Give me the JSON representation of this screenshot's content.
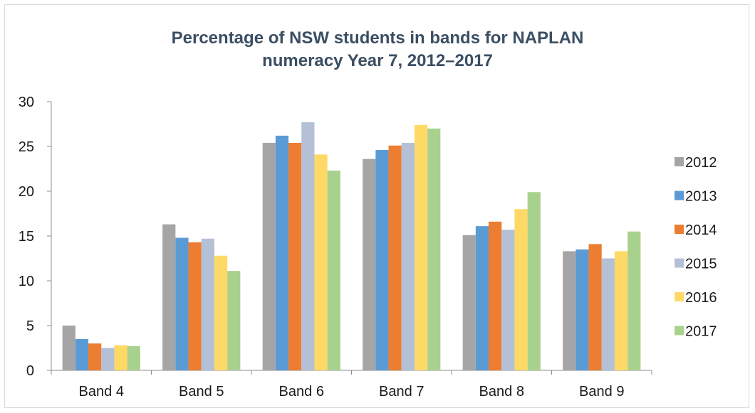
{
  "chart_data": {
    "type": "bar",
    "title_lines": [
      "Percentage of NSW students in bands for NAPLAN",
      "numeracy Year 7, 2012–2017"
    ],
    "categories": [
      "Band 4",
      "Band 5",
      "Band 6",
      "Band 7",
      "Band 8",
      "Band 9"
    ],
    "series": [
      {
        "name": "2012",
        "color": "#a5a5a5",
        "values": [
          5.0,
          16.3,
          25.4,
          23.6,
          15.1,
          13.3
        ]
      },
      {
        "name": "2013",
        "color": "#5b9bd5",
        "values": [
          3.5,
          14.8,
          26.2,
          24.6,
          16.1,
          13.5
        ]
      },
      {
        "name": "2014",
        "color": "#ed7d31",
        "values": [
          3.0,
          14.3,
          25.4,
          25.1,
          16.6,
          14.1
        ]
      },
      {
        "name": "2015",
        "color": "#b4c0d6",
        "values": [
          2.5,
          14.7,
          27.7,
          25.4,
          15.7,
          12.5
        ]
      },
      {
        "name": "2016",
        "color": "#ffd966",
        "values": [
          2.8,
          12.8,
          24.1,
          27.4,
          18.0,
          13.3
        ]
      },
      {
        "name": "2017",
        "color": "#a9d18e",
        "values": [
          2.7,
          11.1,
          22.3,
          27.0,
          19.9,
          15.5
        ]
      }
    ],
    "y_ticks": [
      "0",
      "5",
      "10",
      "15",
      "20",
      "25",
      "30"
    ],
    "ylim": [
      0,
      30
    ],
    "legend_position": "right",
    "grid": false
  }
}
